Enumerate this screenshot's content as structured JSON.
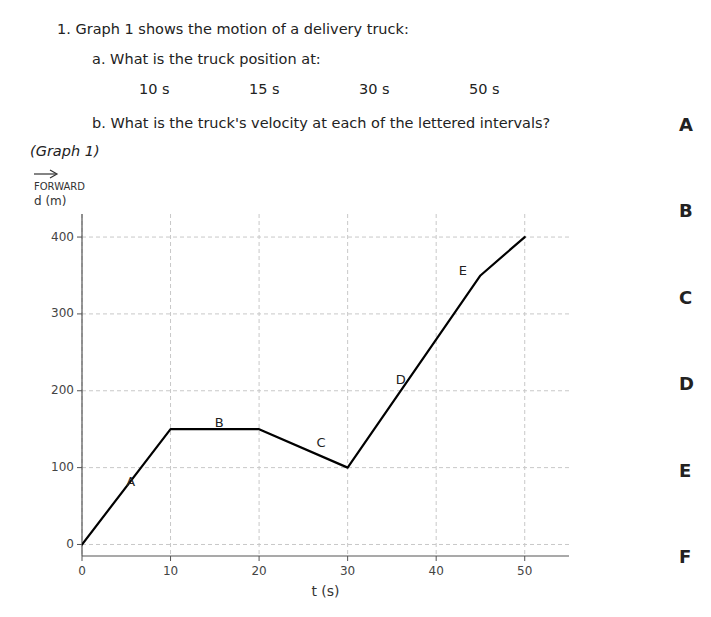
{
  "chart_data": {
    "type": "line",
    "title": "1.    Graph 1  shows the motion of a delivery truck:",
    "question_a": "a.   What is the truck position at:",
    "times": [
      "10 s",
      "15 s",
      "30 s",
      "50 s"
    ],
    "question_b": "b.   What is the truck's velocity at each of the lettered intervals?",
    "graph_label": "(Graph 1)",
    "ylabel": "d (m)",
    "ylabel_note": "FORWARD",
    "xlabel": "t (s)",
    "xlim": [
      0,
      55
    ],
    "ylim": [
      -15,
      430
    ],
    "xticks": [
      0,
      10,
      20,
      30,
      40,
      50
    ],
    "yticks": [
      0,
      100,
      200,
      300,
      400
    ],
    "x": [
      0,
      10,
      20,
      30,
      45,
      50
    ],
    "values": [
      0,
      150,
      150,
      100,
      350,
      400
    ],
    "color": "#000000",
    "grid": true,
    "annotations": [
      {
        "text": "A",
        "x": 5.5,
        "y": 80
      },
      {
        "text": "B",
        "x": 15.5,
        "y": 158
      },
      {
        "text": "C",
        "x": 27.0,
        "y": 132
      },
      {
        "text": "D",
        "x": 36.0,
        "y": 213
      },
      {
        "text": "E",
        "x": 43.0,
        "y": 355
      }
    ],
    "answer_labels": [
      "A",
      "B",
      "C",
      "D",
      "E",
      "F"
    ]
  }
}
